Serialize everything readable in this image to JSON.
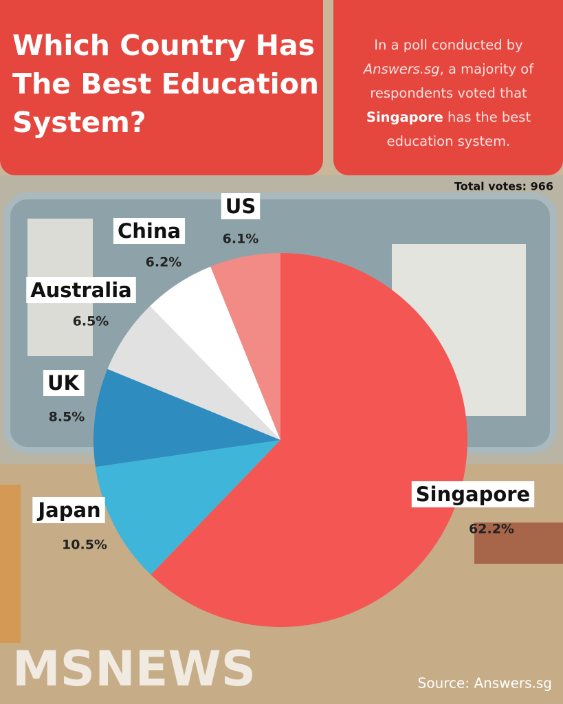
{
  "header": {
    "title": "Which Country Has The Best Education System?",
    "description": [
      "In a poll conducted by ",
      "Answers.sg",
      ", a majority of respondents voted that ",
      "Singapore",
      " has the best education system."
    ]
  },
  "chart_data": {
    "type": "pie",
    "note": "Total votes: 966",
    "categories": [
      "Singapore",
      "Japan",
      "UK",
      "Australia",
      "China",
      "US"
    ],
    "values": [
      62.2,
      10.5,
      8.5,
      6.5,
      6.2,
      6.1
    ],
    "value_labels": [
      "62.2%",
      "10.5%",
      "8.5%",
      "6.5%",
      "6.2%",
      "6.1%"
    ],
    "colors": [
      "#f45654",
      "#3fb6d9",
      "#2e8cbf",
      "#e1e1e1",
      "#ffffff",
      "#f28a85"
    ]
  },
  "footer": {
    "logo": "MSNEWS",
    "source": "Source: Answers.sg"
  }
}
